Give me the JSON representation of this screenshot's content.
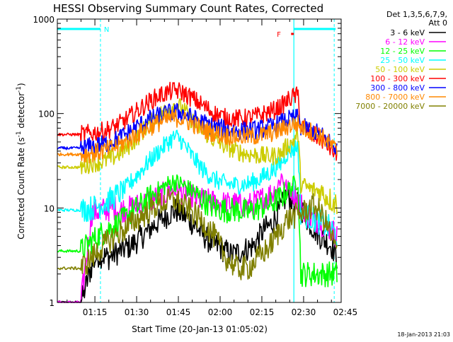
{
  "chart_data": {
    "type": "line",
    "title": "HESSI Observing Summary Count Rates, Corrected",
    "xlabel": "Start Time (20-Jan-13 01:05:02)",
    "ylabel": "Corrected Count Rate (s⁻¹ detector⁻¹)",
    "ylabel_main": "Corrected Count Rate (s",
    "ylabel_mid": " detector",
    "ylabel_end": ")",
    "ylabel_sup": "-1",
    "yscale": "log",
    "ylim": [
      1,
      1000
    ],
    "xlim_minutes": [
      1.5,
      103.5
    ],
    "x_ticks": [
      {
        "label": "01:15",
        "m": 15
      },
      {
        "label": "01:30",
        "m": 30
      },
      {
        "label": "01:45",
        "m": 45
      },
      {
        "label": "02:00",
        "m": 60
      },
      {
        "label": "02:15",
        "m": 75
      },
      {
        "label": "02:30",
        "m": 90
      },
      {
        "label": "02:45",
        "m": 105
      }
    ],
    "y_ticks": [
      {
        "label": "1",
        "v": 1
      },
      {
        "label": "10",
        "v": 10
      },
      {
        "label": "100",
        "v": 100
      },
      {
        "label": "1000",
        "v": 1000
      }
    ],
    "legend": {
      "placement": "right",
      "header_line1": "Det 1,3,5,6,7,9,",
      "header_line2": "Att 0"
    },
    "series": [
      {
        "name": "3 - 6 keV",
        "color": "#000000",
        "points": [
          [
            1,
            1
          ],
          [
            10,
            1
          ],
          [
            14,
            2.5
          ],
          [
            16,
            3.2
          ],
          [
            20,
            3
          ],
          [
            24,
            3.5
          ],
          [
            28,
            4
          ],
          [
            32,
            5
          ],
          [
            36,
            6.5
          ],
          [
            40,
            8
          ],
          [
            44,
            9.5
          ],
          [
            48,
            8
          ],
          [
            52,
            6
          ],
          [
            56,
            4.5
          ],
          [
            60,
            3.8
          ],
          [
            64,
            3.2
          ],
          [
            68,
            3.5
          ],
          [
            72,
            4
          ],
          [
            76,
            6
          ],
          [
            78,
            6.5
          ],
          [
            80,
            8
          ],
          [
            82,
            10
          ],
          [
            84,
            14
          ],
          [
            86,
            12
          ],
          [
            89,
            10
          ],
          [
            92,
            7
          ],
          [
            96,
            5
          ],
          [
            100,
            4
          ],
          [
            102,
            3
          ]
        ]
      },
      {
        "name": "6 - 12 keV",
        "color": "#ff00ff",
        "points": [
          [
            1,
            1
          ],
          [
            10,
            1
          ],
          [
            14,
            9
          ],
          [
            18,
            9.5
          ],
          [
            22,
            10
          ],
          [
            24,
            9.5
          ],
          [
            28,
            10
          ],
          [
            32,
            11
          ],
          [
            36,
            12.5
          ],
          [
            40,
            14
          ],
          [
            43,
            15.5
          ],
          [
            46,
            15
          ],
          [
            50,
            13
          ],
          [
            54,
            12
          ],
          [
            58,
            11.5
          ],
          [
            62,
            11
          ],
          [
            66,
            11
          ],
          [
            70,
            10.5
          ],
          [
            74,
            12
          ],
          [
            78,
            14
          ],
          [
            80,
            15
          ],
          [
            82,
            22
          ],
          [
            84,
            16
          ],
          [
            86,
            15
          ],
          [
            89,
            11
          ],
          [
            92,
            8
          ],
          [
            96,
            7
          ],
          [
            100,
            6
          ],
          [
            102,
            5
          ]
        ]
      },
      {
        "name": "12 - 25 keV",
        "color": "#00ff00",
        "points": [
          [
            1,
            3.5
          ],
          [
            10,
            3.5
          ],
          [
            14,
            4.5
          ],
          [
            16,
            5
          ],
          [
            20,
            6
          ],
          [
            24,
            7
          ],
          [
            28,
            9
          ],
          [
            32,
            11
          ],
          [
            36,
            14
          ],
          [
            40,
            17
          ],
          [
            43,
            19
          ],
          [
            46,
            18
          ],
          [
            50,
            15
          ],
          [
            54,
            12
          ],
          [
            58,
            10
          ],
          [
            62,
            9.5
          ],
          [
            66,
            9.5
          ],
          [
            70,
            9
          ],
          [
            74,
            10
          ],
          [
            78,
            11
          ],
          [
            80,
            12
          ],
          [
            82,
            13
          ],
          [
            84,
            15
          ],
          [
            86,
            17
          ],
          [
            88,
            20
          ],
          [
            89,
            2
          ],
          [
            102,
            2
          ]
        ]
      },
      {
        "name": "25 - 50 keV",
        "color": "#00ffff",
        "points": [
          [
            1,
            9.5
          ],
          [
            10,
            9.5
          ],
          [
            14,
            10
          ],
          [
            18,
            11
          ],
          [
            22,
            13
          ],
          [
            26,
            16
          ],
          [
            30,
            22
          ],
          [
            34,
            30
          ],
          [
            38,
            40
          ],
          [
            42,
            52
          ],
          [
            44,
            57
          ],
          [
            46,
            52
          ],
          [
            50,
            35
          ],
          [
            54,
            25
          ],
          [
            58,
            20
          ],
          [
            62,
            18
          ],
          [
            66,
            17.5
          ],
          [
            70,
            18
          ],
          [
            74,
            20
          ],
          [
            76,
            22
          ],
          [
            78,
            24
          ],
          [
            80,
            27
          ],
          [
            82,
            30
          ],
          [
            84,
            38
          ],
          [
            86,
            42
          ],
          [
            88,
            45
          ],
          [
            89,
            9
          ],
          [
            92,
            8
          ],
          [
            96,
            7
          ],
          [
            100,
            6
          ],
          [
            102,
            5
          ]
        ]
      },
      {
        "name": "50 - 100 keV",
        "color": "#cccc00",
        "points": [
          [
            1,
            27
          ],
          [
            10,
            27
          ],
          [
            14,
            30
          ],
          [
            18,
            31
          ],
          [
            22,
            35
          ],
          [
            26,
            42
          ],
          [
            30,
            55
          ],
          [
            34,
            75
          ],
          [
            38,
            95
          ],
          [
            42,
            115
          ],
          [
            44,
            125
          ],
          [
            46,
            115
          ],
          [
            50,
            85
          ],
          [
            54,
            65
          ],
          [
            58,
            52
          ],
          [
            62,
            45
          ],
          [
            66,
            40
          ],
          [
            70,
            37
          ],
          [
            74,
            36
          ],
          [
            78,
            35
          ],
          [
            80,
            36
          ],
          [
            82,
            38
          ],
          [
            84,
            45
          ],
          [
            86,
            50
          ],
          [
            88,
            60
          ],
          [
            89,
            18
          ],
          [
            92,
            16
          ],
          [
            96,
            15
          ],
          [
            100,
            12
          ],
          [
            102,
            11
          ]
        ]
      },
      {
        "name": "100 - 300 keV",
        "color": "#ff0000",
        "points": [
          [
            1,
            60
          ],
          [
            10,
            60
          ],
          [
            14,
            62
          ],
          [
            18,
            65
          ],
          [
            22,
            72
          ],
          [
            26,
            85
          ],
          [
            30,
            105
          ],
          [
            34,
            130
          ],
          [
            38,
            155
          ],
          [
            42,
            170
          ],
          [
            44,
            175
          ],
          [
            46,
            170
          ],
          [
            50,
            145
          ],
          [
            54,
            120
          ],
          [
            58,
            100
          ],
          [
            62,
            90
          ],
          [
            66,
            88
          ],
          [
            70,
            90
          ],
          [
            74,
            95
          ],
          [
            78,
            105
          ],
          [
            80,
            110
          ],
          [
            82,
            120
          ],
          [
            84,
            135
          ],
          [
            86,
            150
          ],
          [
            88,
            155
          ],
          [
            89,
            75
          ],
          [
            92,
            62
          ],
          [
            96,
            55
          ],
          [
            100,
            42
          ],
          [
            102,
            35
          ]
        ]
      },
      {
        "name": "300 - 800 keV",
        "color": "#0000ff",
        "points": [
          [
            1,
            43
          ],
          [
            10,
            43
          ],
          [
            14,
            45
          ],
          [
            18,
            47
          ],
          [
            22,
            52
          ],
          [
            26,
            60
          ],
          [
            30,
            72
          ],
          [
            34,
            85
          ],
          [
            38,
            95
          ],
          [
            42,
            102
          ],
          [
            44,
            104
          ],
          [
            46,
            102
          ],
          [
            50,
            90
          ],
          [
            54,
            80
          ],
          [
            58,
            72
          ],
          [
            62,
            68
          ],
          [
            66,
            66
          ],
          [
            70,
            66
          ],
          [
            74,
            68
          ],
          [
            78,
            72
          ],
          [
            80,
            75
          ],
          [
            82,
            80
          ],
          [
            84,
            85
          ],
          [
            86,
            88
          ],
          [
            88,
            90
          ],
          [
            89,
            72
          ],
          [
            92,
            68
          ],
          [
            96,
            60
          ],
          [
            100,
            48
          ],
          [
            102,
            42
          ]
        ]
      },
      {
        "name": "800 - 7000 keV",
        "color": "#ff8800",
        "points": [
          [
            1,
            37
          ],
          [
            10,
            37
          ],
          [
            14,
            38
          ],
          [
            18,
            40
          ],
          [
            22,
            44
          ],
          [
            26,
            50
          ],
          [
            30,
            60
          ],
          [
            34,
            70
          ],
          [
            38,
            80
          ],
          [
            42,
            88
          ],
          [
            44,
            90
          ],
          [
            46,
            88
          ],
          [
            50,
            78
          ],
          [
            54,
            68
          ],
          [
            58,
            62
          ],
          [
            62,
            58
          ],
          [
            66,
            57
          ],
          [
            70,
            57
          ],
          [
            74,
            58
          ],
          [
            78,
            62
          ],
          [
            80,
            64
          ],
          [
            82,
            68
          ],
          [
            84,
            72
          ],
          [
            86,
            76
          ],
          [
            88,
            78
          ],
          [
            89,
            72
          ],
          [
            92,
            66
          ],
          [
            96,
            58
          ],
          [
            100,
            46
          ],
          [
            102,
            40
          ]
        ]
      },
      {
        "name": "7000 - 20000 keV",
        "color": "#808000",
        "points": [
          [
            1,
            2.3
          ],
          [
            10,
            2.3
          ],
          [
            14,
            3
          ],
          [
            18,
            4
          ],
          [
            22,
            5
          ],
          [
            26,
            6
          ],
          [
            30,
            7.5
          ],
          [
            34,
            9
          ],
          [
            38,
            11
          ],
          [
            42,
            12
          ],
          [
            44,
            12
          ],
          [
            46,
            11
          ],
          [
            50,
            9
          ],
          [
            54,
            7
          ],
          [
            58,
            5
          ],
          [
            62,
            3
          ],
          [
            66,
            2.3
          ],
          [
            70,
            2.3
          ],
          [
            74,
            3
          ],
          [
            78,
            4
          ],
          [
            80,
            5
          ],
          [
            82,
            6
          ],
          [
            84,
            7.5
          ],
          [
            86,
            8
          ],
          [
            88,
            8.5
          ],
          [
            90,
            9
          ],
          [
            92,
            10
          ],
          [
            94,
            10.5
          ],
          [
            96,
            9
          ],
          [
            98,
            7
          ],
          [
            100,
            5
          ],
          [
            102,
            3.5
          ]
        ]
      }
    ],
    "annotations": {
      "night_marker_label": "N",
      "night_bars": [
        [
          1.5,
          17
        ]
      ],
      "night_end_m": 17,
      "saa_start_m": 86.5,
      "saa_end_m": 101,
      "flare_label": "F",
      "flare_bars": [
        [
          85.5,
          101.5
        ]
      ],
      "flare_start_m": 86.5
    },
    "timestamp": "18-Jan-2013 21:03"
  }
}
